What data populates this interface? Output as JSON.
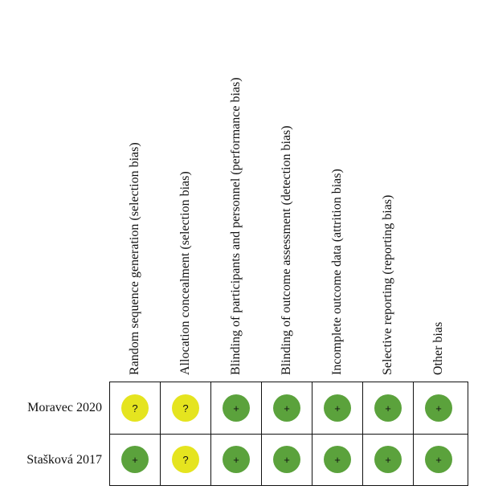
{
  "domains": [
    "Random sequence generation (selection bias)",
    "Allocation concealment (selection bias)",
    "Blinding of participants and personnel (performance bias)",
    "Blinding of outcome assessment (detection bias)",
    "Incomplete outcome data (attrition bias)",
    "Selective reporting (reporting bias)",
    "Other bias"
  ],
  "studies": [
    {
      "name": "Moravec 2020",
      "judgements": [
        "unclear",
        "unclear",
        "low",
        "low",
        "low",
        "low",
        "low"
      ]
    },
    {
      "name": "Stašková 2017",
      "judgements": [
        "low",
        "unclear",
        "low",
        "low",
        "low",
        "low",
        "low"
      ]
    }
  ],
  "symbols": {
    "low": "+",
    "unclear": "?"
  },
  "colors": {
    "low": "#5ba23c",
    "unclear": "#e5e41f"
  }
}
